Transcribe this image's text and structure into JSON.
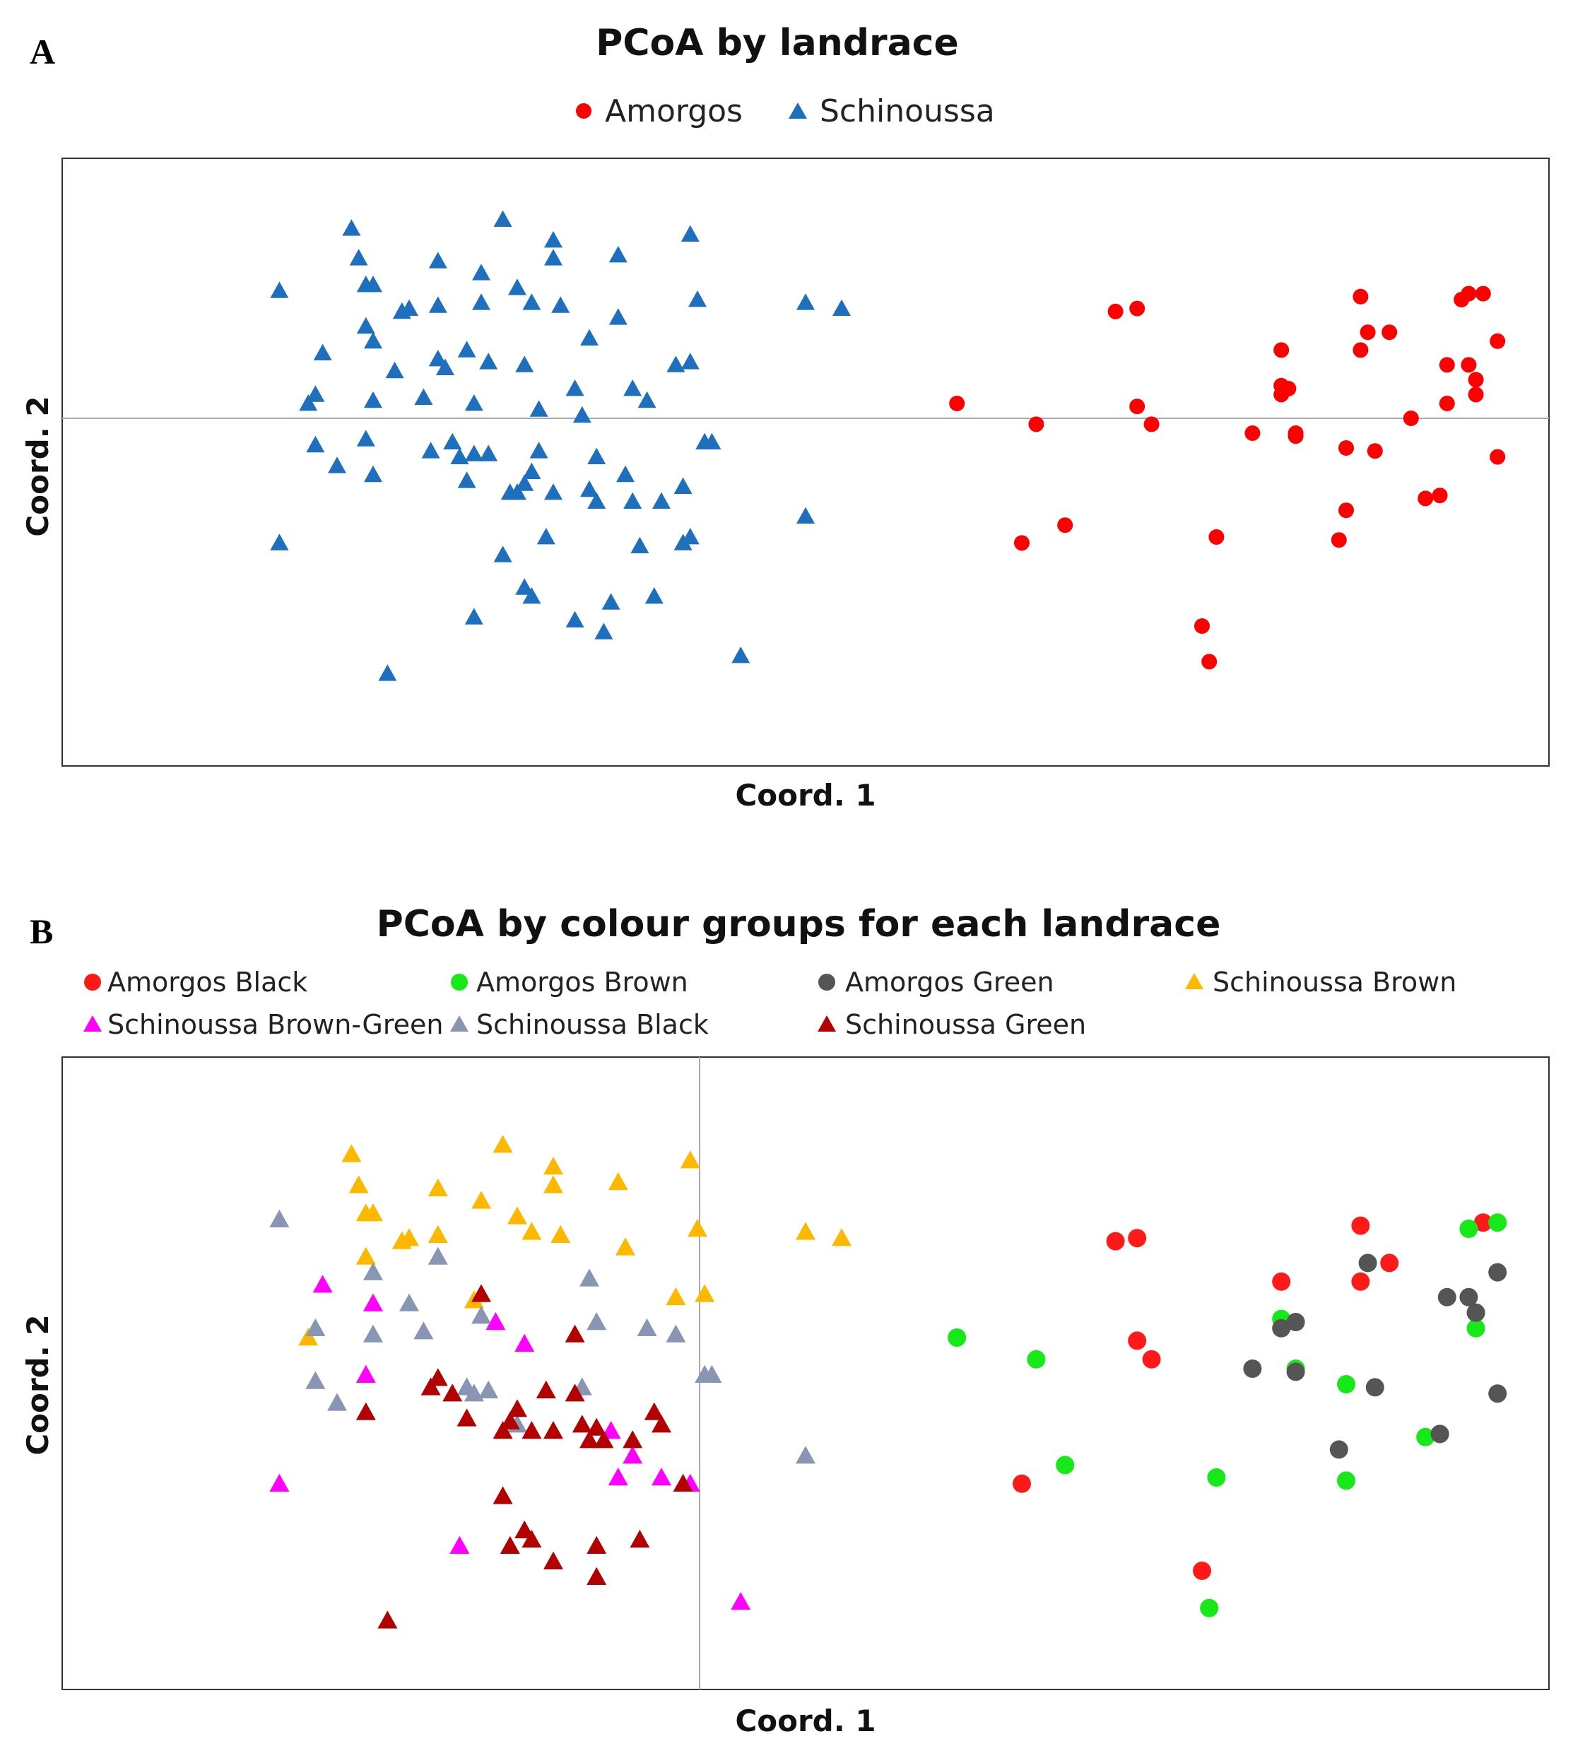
{
  "chart_data": [
    {
      "panel": "A",
      "type": "scatter",
      "title": "PCoA by landrace",
      "xlabel": "Coord. 1",
      "ylabel": "Coord. 2",
      "xlim": [
        -1,
        1
      ],
      "ylim": [
        -1,
        1
      ],
      "zero_line": "horizontal",
      "legend_placement": "top-center",
      "series": [
        {
          "name": "Amorgos",
          "marker": "circle",
          "color": "#ff0000",
          "points": [
            [
              0.21,
              0.05
            ],
            [
              0.32,
              -0.02
            ],
            [
              0.3,
              -0.42
            ],
            [
              0.36,
              -0.36
            ],
            [
              0.43,
              0.36
            ],
            [
              0.46,
              0.37
            ],
            [
              0.46,
              0.04
            ],
            [
              0.48,
              -0.02
            ],
            [
              0.55,
              -0.7
            ],
            [
              0.56,
              -0.82
            ],
            [
              0.57,
              -0.4
            ],
            [
              0.62,
              -0.05
            ],
            [
              0.66,
              0.23
            ],
            [
              0.66,
              0.08
            ],
            [
              0.66,
              0.11
            ],
            [
              0.67,
              0.1
            ],
            [
              0.68,
              -0.05
            ],
            [
              0.68,
              -0.06
            ],
            [
              0.74,
              -0.41
            ],
            [
              0.75,
              -0.1
            ],
            [
              0.75,
              -0.31
            ],
            [
              0.77,
              0.41
            ],
            [
              0.77,
              0.23
            ],
            [
              0.78,
              0.29
            ],
            [
              0.79,
              -0.11
            ],
            [
              0.81,
              0.29
            ],
            [
              0.84,
              0.0
            ],
            [
              0.86,
              -0.27
            ],
            [
              0.88,
              -0.26
            ],
            [
              0.89,
              0.05
            ],
            [
              0.89,
              0.18
            ],
            [
              0.91,
              0.4
            ],
            [
              0.92,
              0.42
            ],
            [
              0.92,
              0.18
            ],
            [
              0.93,
              0.13
            ],
            [
              0.93,
              0.08
            ],
            [
              0.94,
              0.42
            ],
            [
              0.96,
              0.26
            ],
            [
              0.96,
              -0.13
            ]
          ]
        },
        {
          "name": "Schinoussa",
          "marker": "triangle",
          "color": "#1f6fbf",
          "points": [
            [
              -0.73,
              0.43
            ],
            [
              -0.73,
              -0.42
            ],
            [
              -0.69,
              0.05
            ],
            [
              -0.68,
              -0.09
            ],
            [
              -0.68,
              0.08
            ],
            [
              -0.67,
              0.22
            ],
            [
              -0.65,
              -0.16
            ],
            [
              -0.63,
              0.64
            ],
            [
              -0.62,
              0.54
            ],
            [
              -0.61,
              0.31
            ],
            [
              -0.61,
              0.45
            ],
            [
              -0.61,
              -0.07
            ],
            [
              -0.6,
              0.26
            ],
            [
              -0.6,
              0.06
            ],
            [
              -0.6,
              -0.19
            ],
            [
              -0.6,
              0.45
            ],
            [
              -0.57,
              0.16
            ],
            [
              -0.56,
              0.36
            ],
            [
              -0.55,
              0.37
            ],
            [
              -0.53,
              0.07
            ],
            [
              -0.52,
              -0.11
            ],
            [
              -0.51,
              0.53
            ],
            [
              -0.51,
              0.38
            ],
            [
              -0.51,
              0.2
            ],
            [
              -0.5,
              0.17
            ],
            [
              -0.49,
              -0.08
            ],
            [
              -0.48,
              -0.13
            ],
            [
              -0.47,
              0.23
            ],
            [
              -0.47,
              -0.21
            ],
            [
              -0.46,
              -0.12
            ],
            [
              -0.46,
              0.05
            ],
            [
              -0.46,
              -0.67
            ],
            [
              -0.45,
              0.49
            ],
            [
              -0.45,
              0.39
            ],
            [
              -0.44,
              0.19
            ],
            [
              -0.44,
              -0.12
            ],
            [
              -0.42,
              0.67
            ],
            [
              -0.42,
              -0.46
            ],
            [
              -0.41,
              -0.25
            ],
            [
              -0.4,
              -0.25
            ],
            [
              -0.4,
              0.44
            ],
            [
              -0.39,
              -0.22
            ],
            [
              -0.39,
              0.18
            ],
            [
              -0.39,
              -0.57
            ],
            [
              -0.38,
              -0.6
            ],
            [
              -0.38,
              -0.18
            ],
            [
              -0.38,
              0.39
            ],
            [
              -0.37,
              0.03
            ],
            [
              -0.37,
              -0.11
            ],
            [
              -0.36,
              -0.4
            ],
            [
              -0.35,
              0.6
            ],
            [
              -0.35,
              -0.25
            ],
            [
              -0.35,
              0.54
            ],
            [
              -0.34,
              0.38
            ],
            [
              -0.32,
              0.1
            ],
            [
              -0.32,
              -0.68
            ],
            [
              -0.31,
              0.01
            ],
            [
              -0.3,
              0.27
            ],
            [
              -0.3,
              -0.24
            ],
            [
              -0.29,
              -0.13
            ],
            [
              -0.29,
              -0.28
            ],
            [
              -0.28,
              -0.72
            ],
            [
              -0.27,
              -0.62
            ],
            [
              -0.26,
              0.55
            ],
            [
              -0.26,
              0.34
            ],
            [
              -0.25,
              -0.19
            ],
            [
              -0.24,
              0.1
            ],
            [
              -0.24,
              -0.28
            ],
            [
              -0.23,
              -0.43
            ],
            [
              -0.22,
              0.06
            ],
            [
              -0.21,
              -0.6
            ],
            [
              -0.2,
              -0.28
            ],
            [
              -0.18,
              0.18
            ],
            [
              -0.17,
              -0.23
            ],
            [
              -0.17,
              -0.42
            ],
            [
              -0.16,
              0.62
            ],
            [
              -0.16,
              0.19
            ],
            [
              -0.16,
              -0.4
            ],
            [
              -0.15,
              0.4
            ],
            [
              -0.14,
              -0.08
            ],
            [
              -0.13,
              -0.08
            ],
            [
              -0.09,
              -0.8
            ],
            [
              0.0,
              -0.33
            ],
            [
              0.0,
              0.39
            ],
            [
              0.05,
              0.37
            ],
            [
              -0.58,
              -0.86
            ],
            [
              -0.73,
              -0.42
            ]
          ]
        }
      ]
    },
    {
      "panel": "B",
      "type": "scatter",
      "title": "PCoA by colour groups for each landrace",
      "xlabel": "Coord. 1",
      "ylabel": "Coord. 2",
      "xlim": [
        -1,
        1
      ],
      "ylim": [
        -1,
        1
      ],
      "zero_line": "vertical",
      "legend_placement": "top",
      "series": [
        {
          "name": "Amorgos Black",
          "marker": "circle",
          "color": "#ff1a1a",
          "points": [
            [
              0.43,
              0.36
            ],
            [
              0.46,
              0.37
            ],
            [
              0.46,
              0.04
            ],
            [
              0.48,
              -0.02
            ],
            [
              0.3,
              -0.42
            ],
            [
              0.55,
              -0.7
            ],
            [
              0.66,
              0.23
            ],
            [
              0.77,
              0.41
            ],
            [
              0.77,
              0.23
            ],
            [
              0.81,
              0.29
            ],
            [
              0.88,
              -0.26
            ],
            [
              0.93,
              0.13
            ],
            [
              0.94,
              0.42
            ]
          ]
        },
        {
          "name": "Amorgos Brown",
          "marker": "circle",
          "color": "#17e817",
          "points": [
            [
              0.21,
              0.05
            ],
            [
              0.32,
              -0.02
            ],
            [
              0.36,
              -0.36
            ],
            [
              0.57,
              -0.4
            ],
            [
              0.56,
              -0.82
            ],
            [
              0.66,
              0.11
            ],
            [
              0.68,
              -0.05
            ],
            [
              0.75,
              -0.41
            ],
            [
              0.75,
              -0.1
            ],
            [
              0.86,
              -0.27
            ],
            [
              0.92,
              0.4
            ],
            [
              0.96,
              0.42
            ],
            [
              0.93,
              0.08
            ]
          ]
        },
        {
          "name": "Amorgos Green",
          "marker": "circle",
          "color": "#555555",
          "points": [
            [
              0.62,
              -0.05
            ],
            [
              0.66,
              0.08
            ],
            [
              0.68,
              0.1
            ],
            [
              0.68,
              -0.06
            ],
            [
              0.74,
              -0.31
            ],
            [
              0.78,
              0.29
            ],
            [
              0.79,
              -0.11
            ],
            [
              0.89,
              0.18
            ],
            [
              0.92,
              0.18
            ],
            [
              0.88,
              -0.26
            ],
            [
              0.93,
              0.13
            ],
            [
              0.96,
              0.26
            ],
            [
              0.96,
              -0.13
            ]
          ]
        },
        {
          "name": "Schinoussa Brown",
          "marker": "triangle",
          "color": "#ffb800",
          "points": [
            [
              -0.63,
              0.64
            ],
            [
              -0.62,
              0.54
            ],
            [
              -0.61,
              0.45
            ],
            [
              -0.6,
              0.45
            ],
            [
              -0.61,
              0.31
            ],
            [
              -0.56,
              0.36
            ],
            [
              -0.55,
              0.37
            ],
            [
              -0.51,
              0.53
            ],
            [
              -0.51,
              0.38
            ],
            [
              -0.45,
              0.49
            ],
            [
              -0.42,
              0.67
            ],
            [
              -0.4,
              0.44
            ],
            [
              -0.38,
              0.39
            ],
            [
              -0.35,
              0.6
            ],
            [
              -0.35,
              0.54
            ],
            [
              -0.34,
              0.38
            ],
            [
              -0.26,
              0.55
            ],
            [
              -0.25,
              0.34
            ],
            [
              -0.16,
              0.62
            ],
            [
              -0.15,
              0.4
            ],
            [
              -0.18,
              0.18
            ],
            [
              -0.14,
              0.19
            ],
            [
              -0.46,
              0.17
            ],
            [
              -0.69,
              0.05
            ],
            [
              0.0,
              0.39
            ],
            [
              0.05,
              0.37
            ]
          ]
        },
        {
          "name": "Schinoussa Brown-Green",
          "marker": "triangle",
          "color": "#ff00ff",
          "points": [
            [
              -0.67,
              0.22
            ],
            [
              -0.6,
              0.16
            ],
            [
              -0.61,
              -0.07
            ],
            [
              -0.43,
              0.1
            ],
            [
              -0.39,
              0.03
            ],
            [
              -0.73,
              -0.42
            ],
            [
              -0.27,
              -0.25
            ],
            [
              -0.26,
              -0.4
            ],
            [
              -0.24,
              -0.33
            ],
            [
              -0.2,
              -0.4
            ],
            [
              -0.16,
              -0.42
            ],
            [
              -0.48,
              -0.62
            ],
            [
              -0.09,
              -0.8
            ]
          ]
        },
        {
          "name": "Schinoussa Black",
          "marker": "triangle",
          "color": "#8896b3",
          "points": [
            [
              -0.73,
              0.43
            ],
            [
              -0.68,
              0.08
            ],
            [
              -0.68,
              -0.09
            ],
            [
              -0.65,
              -0.16
            ],
            [
              -0.6,
              0.06
            ],
            [
              -0.6,
              0.26
            ],
            [
              -0.55,
              0.16
            ],
            [
              -0.53,
              0.07
            ],
            [
              -0.51,
              0.31
            ],
            [
              -0.47,
              -0.11
            ],
            [
              -0.45,
              0.12
            ],
            [
              -0.46,
              -0.13
            ],
            [
              -0.44,
              -0.12
            ],
            [
              -0.4,
              -0.23
            ],
            [
              -0.3,
              0.24
            ],
            [
              -0.29,
              0.1
            ],
            [
              -0.31,
              -0.11
            ],
            [
              -0.22,
              0.08
            ],
            [
              -0.18,
              0.06
            ],
            [
              -0.14,
              -0.07
            ],
            [
              -0.13,
              -0.07
            ],
            [
              0.0,
              -0.33
            ]
          ]
        },
        {
          "name": "Schinoussa Green",
          "marker": "triangle",
          "color": "#b30000",
          "points": [
            [
              -0.61,
              -0.19
            ],
            [
              -0.52,
              -0.11
            ],
            [
              -0.51,
              -0.08
            ],
            [
              -0.49,
              -0.13
            ],
            [
              -0.47,
              -0.21
            ],
            [
              -0.45,
              0.19
            ],
            [
              -0.42,
              -0.25
            ],
            [
              -0.41,
              -0.22
            ],
            [
              -0.4,
              -0.18
            ],
            [
              -0.38,
              -0.25
            ],
            [
              -0.36,
              -0.12
            ],
            [
              -0.35,
              -0.25
            ],
            [
              -0.32,
              -0.13
            ],
            [
              -0.32,
              0.06
            ],
            [
              -0.31,
              -0.23
            ],
            [
              -0.3,
              -0.28
            ],
            [
              -0.29,
              -0.24
            ],
            [
              -0.28,
              -0.28
            ],
            [
              -0.24,
              -0.28
            ],
            [
              -0.42,
              -0.46
            ],
            [
              -0.39,
              -0.57
            ],
            [
              -0.38,
              -0.6
            ],
            [
              -0.35,
              -0.67
            ],
            [
              -0.29,
              -0.72
            ],
            [
              -0.29,
              -0.62
            ],
            [
              -0.23,
              -0.6
            ],
            [
              -0.21,
              -0.19
            ],
            [
              -0.2,
              -0.23
            ],
            [
              -0.17,
              -0.42
            ],
            [
              -0.58,
              -0.86
            ],
            [
              -0.41,
              -0.62
            ]
          ]
        }
      ]
    }
  ]
}
